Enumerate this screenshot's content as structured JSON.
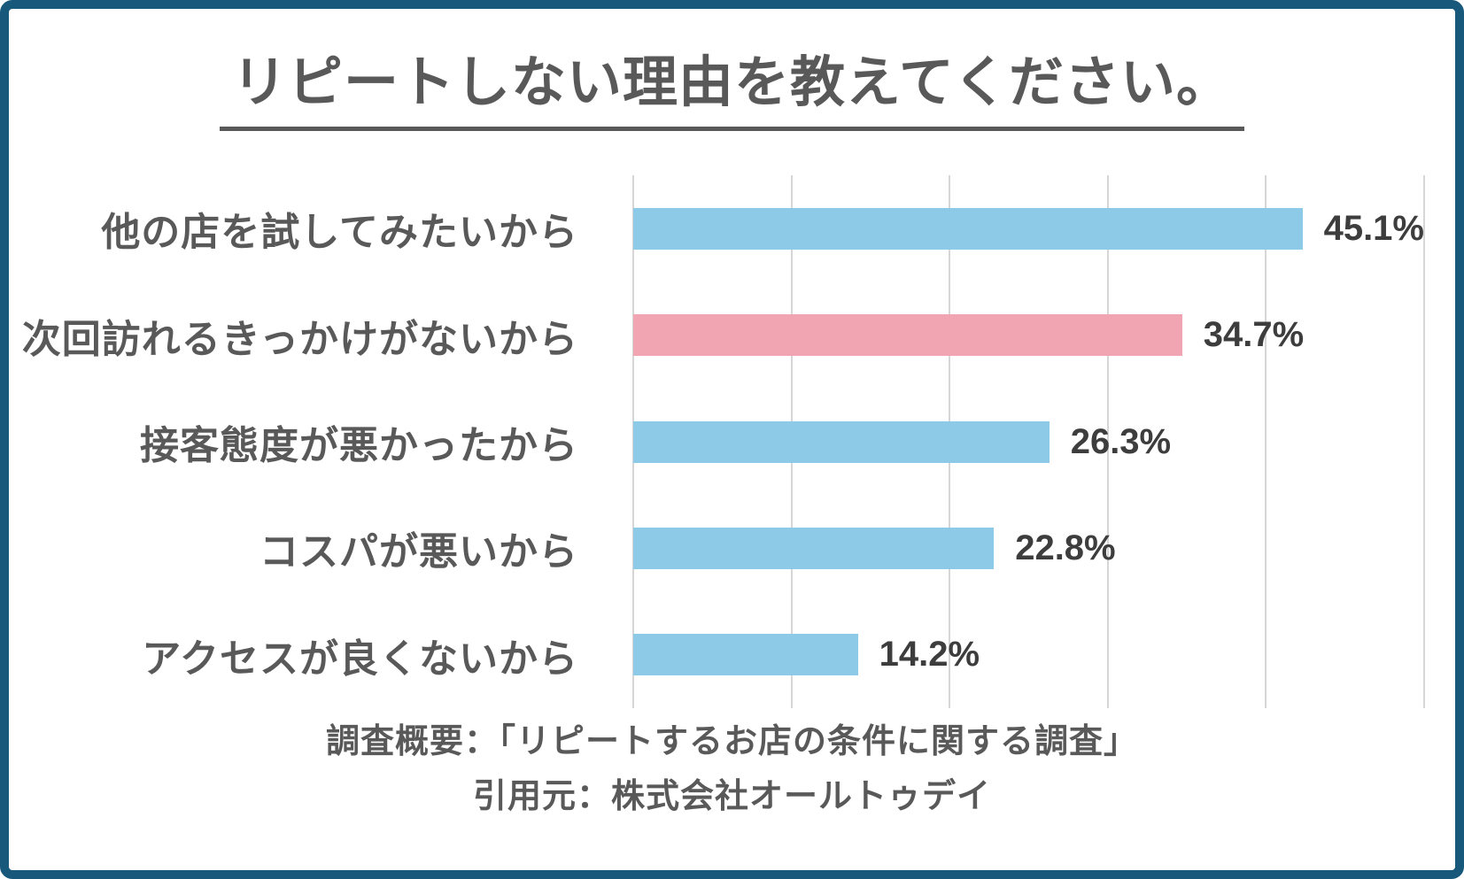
{
  "title": "リピートしない理由を教えてください。",
  "chart_data": {
    "type": "bar",
    "orientation": "horizontal",
    "unit": "%",
    "title": "リピートしない理由を教えてください。",
    "categories": [
      "他の店を試してみたいから",
      "次回訪れるきっかけがないから",
      "接客態度が悪かったから",
      "コスパが悪いから",
      "アクセスが良くないから"
    ],
    "values": [
      45.1,
      34.7,
      26.3,
      22.8,
      14.2
    ],
    "value_labels": [
      "45.1%",
      "34.7%",
      "26.3%",
      "22.8%",
      "14.2%"
    ],
    "highlight_index": 1,
    "bar_color": "#8DCAE8",
    "highlight_color": "#F1A4B2",
    "axis": {
      "min": 0,
      "max": 50,
      "gridline_step": 10,
      "grid": true,
      "tick_labels_visible": false
    },
    "legend": "none"
  },
  "footer": {
    "line1": "調査概要：「リピートするお店の条件に関する調査」",
    "line2": "引用元：株式会社オールトゥデイ"
  },
  "colors": {
    "border": "#18587A",
    "background": "#FFFFFF",
    "text": "#595959",
    "value_text": "#3D3D3D",
    "gridline": "#D6D6D6"
  }
}
